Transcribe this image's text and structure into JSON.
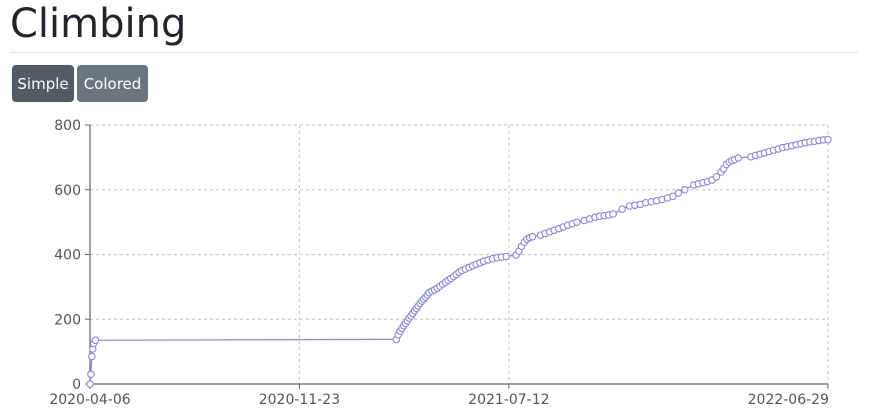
{
  "page": {
    "title": "Climbing"
  },
  "buttons": {
    "simple_label": "Simple",
    "colored_label": "Colored"
  },
  "colors": {
    "line": "#8b84d7",
    "marker_fill": "#ffffff",
    "grid": "#cccccc",
    "axis": "#666666",
    "btn_active": "#545b62",
    "btn": "#6c757d"
  },
  "chart_data": {
    "type": "line",
    "title": "",
    "xlabel": "",
    "ylabel": "",
    "x_type": "date",
    "xlim": [
      "2020-04-06",
      "2022-06-29"
    ],
    "ylim": [
      0,
      800
    ],
    "xticks": [
      "2020-04-06",
      "2020-11-23",
      "2021-07-12",
      "2022-06-29"
    ],
    "yticks": [
      0,
      200,
      400,
      600,
      800
    ],
    "grid": true,
    "markers": true,
    "series": [
      {
        "x": [
          "2020-04-06",
          "2020-04-07",
          "2020-04-08",
          "2020-04-09",
          "2020-04-10",
          "2020-04-12",
          "2021-03-10",
          "2021-03-12",
          "2021-03-14",
          "2021-03-16",
          "2021-03-18",
          "2021-03-20",
          "2021-03-22",
          "2021-03-24",
          "2021-03-26",
          "2021-03-28",
          "2021-03-30",
          "2021-04-01",
          "2021-04-03",
          "2021-04-05",
          "2021-04-07",
          "2021-04-09",
          "2021-04-11",
          "2021-04-13",
          "2021-04-15",
          "2021-04-18",
          "2021-04-21",
          "2021-04-24",
          "2021-04-27",
          "2021-04-30",
          "2021-05-03",
          "2021-05-06",
          "2021-05-09",
          "2021-05-12",
          "2021-05-15",
          "2021-05-18",
          "2021-05-21",
          "2021-05-25",
          "2021-05-29",
          "2021-06-02",
          "2021-06-06",
          "2021-06-10",
          "2021-06-14",
          "2021-06-19",
          "2021-06-24",
          "2021-06-29",
          "2021-07-04",
          "2021-07-09",
          "2021-07-20",
          "2021-07-23",
          "2021-07-26",
          "2021-07-29",
          "2021-08-01",
          "2021-08-04",
          "2021-08-07",
          "2021-08-16",
          "2021-08-21",
          "2021-08-26",
          "2021-08-31",
          "2021-09-05",
          "2021-09-10",
          "2021-09-15",
          "2021-09-20",
          "2021-09-25",
          "2021-10-03",
          "2021-10-09",
          "2021-10-15",
          "2021-10-20",
          "2021-10-25",
          "2021-10-30",
          "2021-11-04",
          "2021-11-14",
          "2021-11-22",
          "2021-11-28",
          "2021-12-04",
          "2021-12-10",
          "2021-12-16",
          "2021-12-22",
          "2021-12-28",
          "2022-01-03",
          "2022-01-09",
          "2022-01-15",
          "2022-01-22",
          "2022-02-01",
          "2022-02-06",
          "2022-02-11",
          "2022-02-16",
          "2022-02-21",
          "2022-02-26",
          "2022-03-03",
          "2022-03-06",
          "2022-03-09",
          "2022-03-12",
          "2022-03-15",
          "2022-03-18",
          "2022-03-22",
          "2022-04-05",
          "2022-04-10",
          "2022-04-15",
          "2022-04-20",
          "2022-04-25",
          "2022-04-30",
          "2022-05-05",
          "2022-05-10",
          "2022-05-15",
          "2022-05-20",
          "2022-05-25",
          "2022-05-30",
          "2022-06-04",
          "2022-06-09",
          "2022-06-14",
          "2022-06-19",
          "2022-06-24",
          "2022-06-29"
        ],
        "y": [
          0,
          30,
          85,
          108,
          125,
          135,
          138,
          152,
          163,
          172,
          180,
          187,
          195,
          203,
          210,
          218,
          226,
          233,
          241,
          249,
          256,
          262,
          268,
          275,
          282,
          287,
          291,
          296,
          302,
          308,
          314,
          320,
          326,
          332,
          338,
          345,
          350,
          355,
          360,
          365,
          370,
          374,
          379,
          383,
          387,
          390,
          392,
          394,
          398,
          410,
          425,
          438,
          447,
          452,
          455,
          460,
          465,
          470,
          475,
          480,
          485,
          490,
          495,
          500,
          505,
          510,
          515,
          518,
          520,
          522,
          525,
          540,
          550,
          552,
          555,
          560,
          563,
          566,
          570,
          575,
          580,
          590,
          600,
          615,
          618,
          622,
          625,
          630,
          640,
          655,
          665,
          678,
          685,
          690,
          693,
          698,
          702,
          706,
          710,
          714,
          718,
          722,
          726,
          730,
          733,
          736,
          739,
          742,
          745,
          748,
          750,
          752,
          754,
          755
        ]
      }
    ]
  }
}
